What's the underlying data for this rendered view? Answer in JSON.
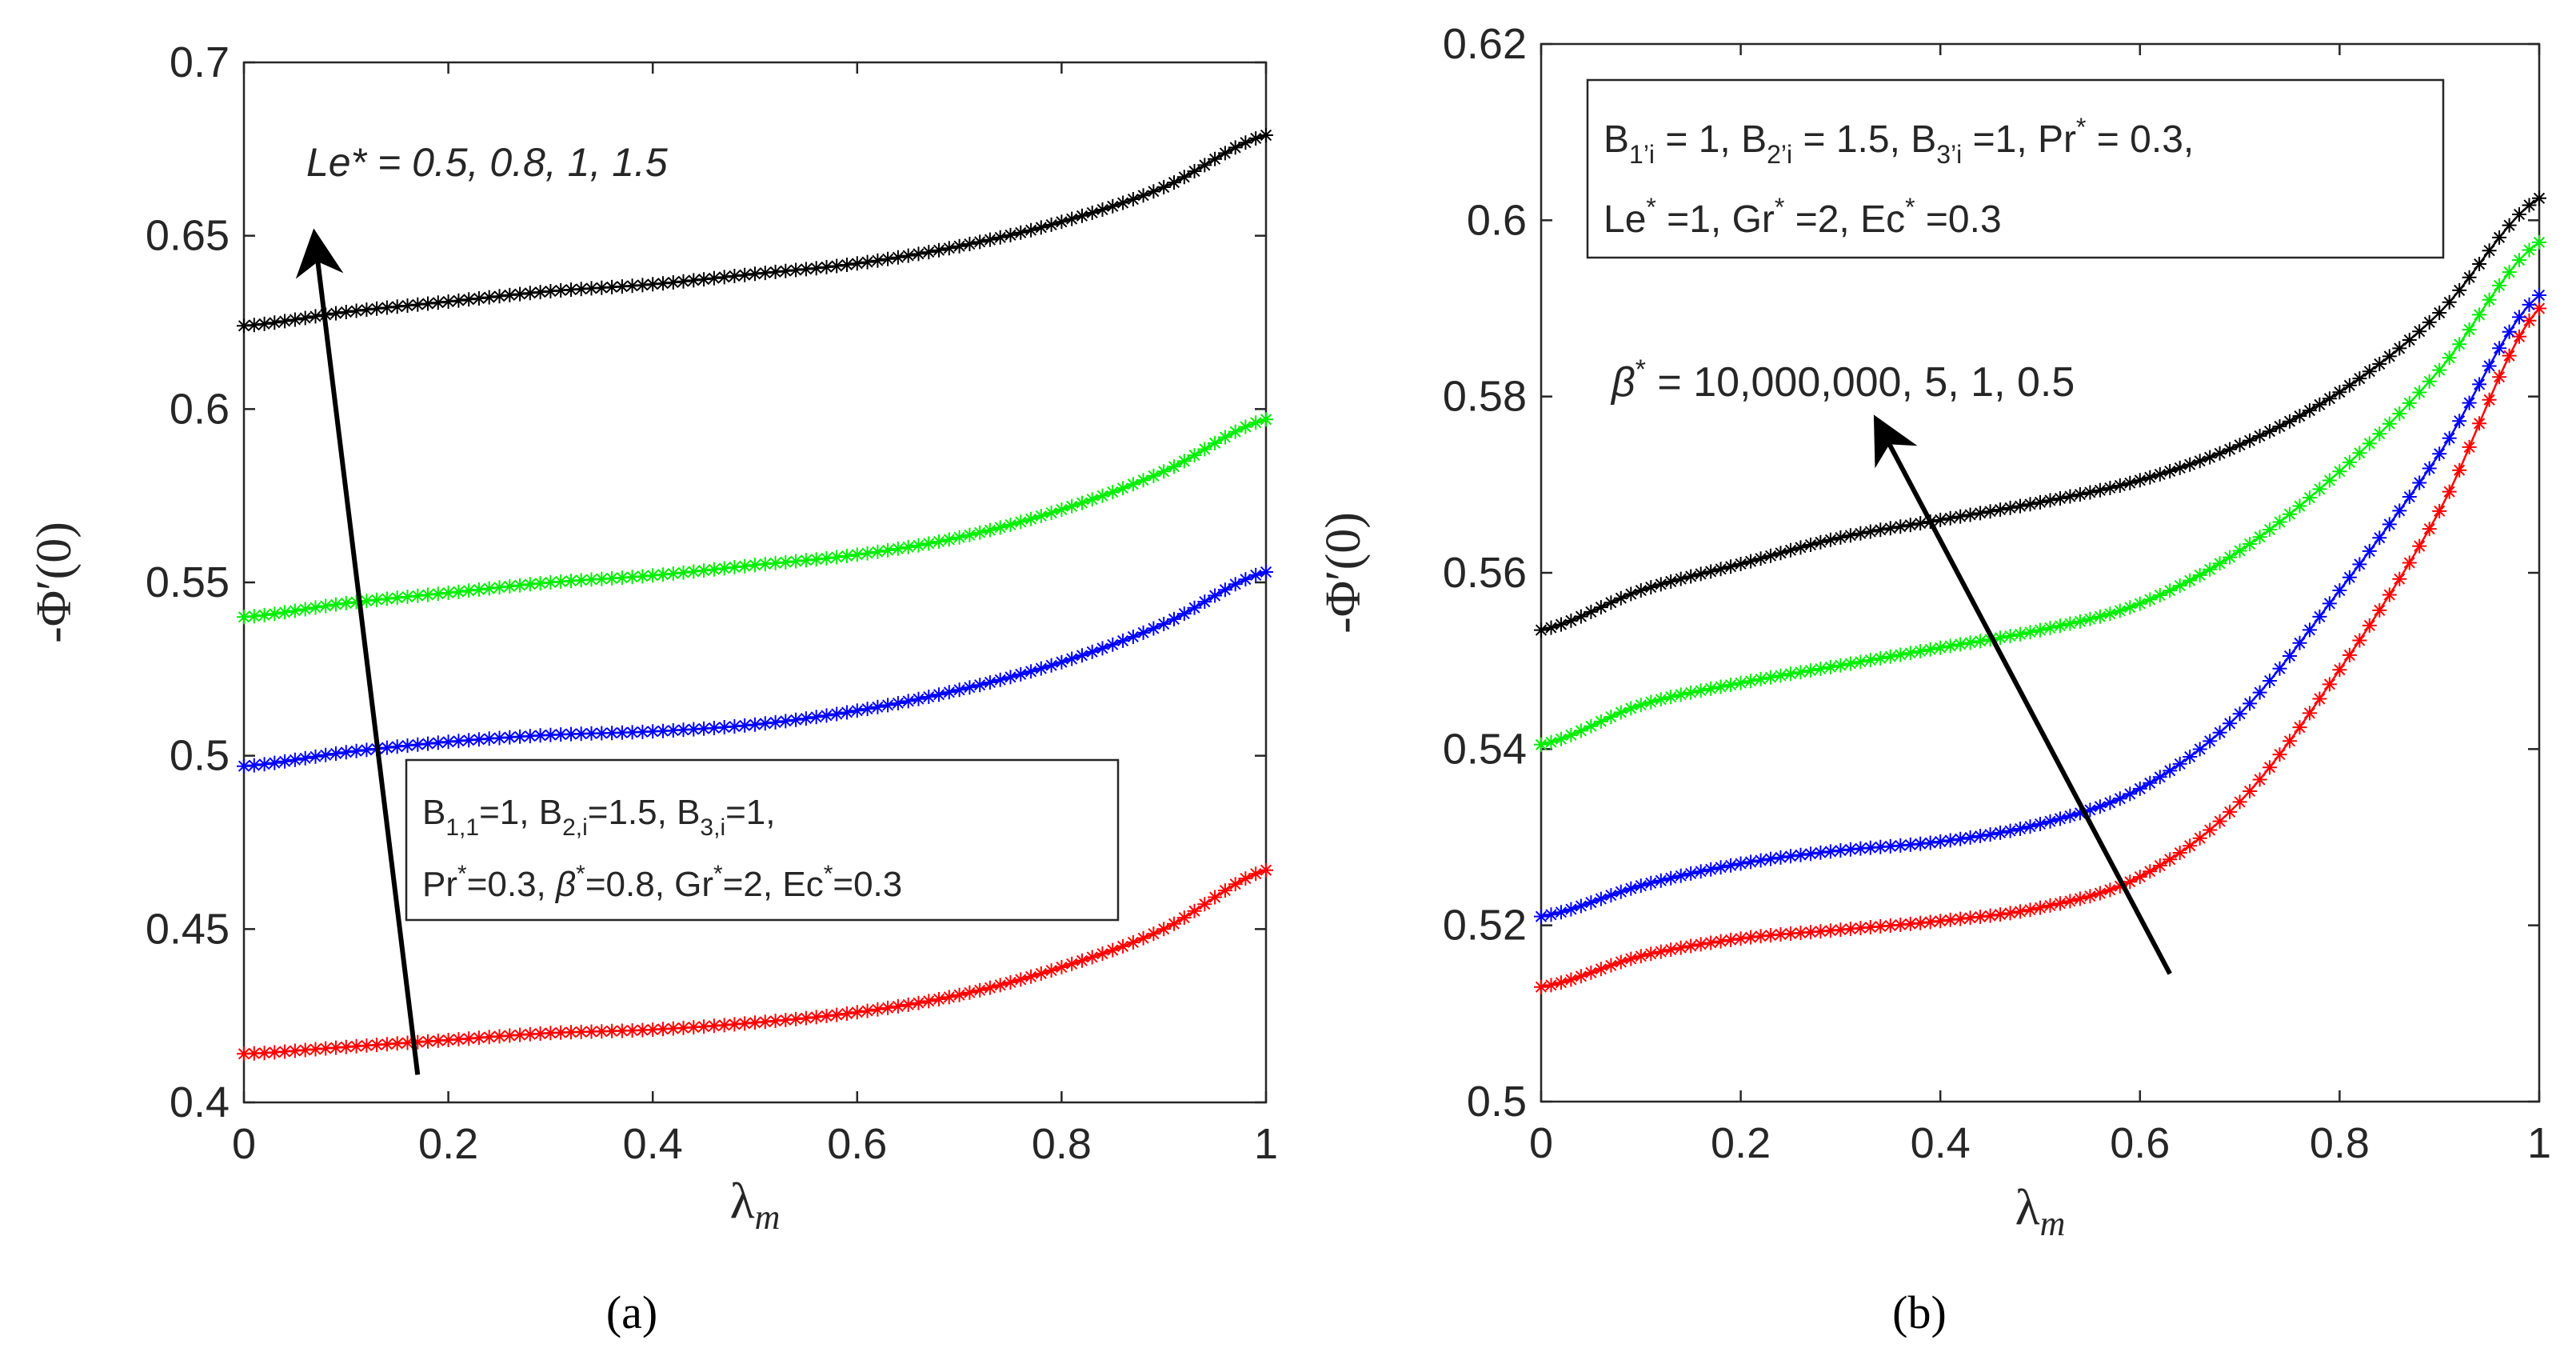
{
  "chart_data": [
    {
      "type": "line",
      "panel": "a",
      "caption": "(a)",
      "xlabel": "λ",
      "xlabel_sub": "m",
      "ylabel": "-Φ′(0)",
      "xlim": [
        0,
        1
      ],
      "ylim": [
        0.4,
        0.7
      ],
      "xticks": [
        0,
        0.2,
        0.4,
        0.6,
        0.8,
        1
      ],
      "xtick_labels": [
        "0",
        "0.2",
        "0.4",
        "0.6",
        "0.8",
        "1"
      ],
      "yticks": [
        0.4,
        0.45,
        0.5,
        0.55,
        0.6,
        0.65,
        0.7
      ],
      "ytick_labels": [
        "0.4",
        "0.45",
        "0.5",
        "0.55",
        "0.6",
        "0.65",
        "0.7"
      ],
      "marker": "*",
      "x": [
        0,
        0.1,
        0.2,
        0.3,
        0.4,
        0.5,
        0.6,
        0.7,
        0.8,
        0.9,
        1.0
      ],
      "series": [
        {
          "name": "Le* = 0.5",
          "color": "#ff0000",
          "values": [
            0.414,
            0.416,
            0.418,
            0.42,
            0.421,
            0.423,
            0.426,
            0.431,
            0.439,
            0.45,
            0.467
          ]
        },
        {
          "name": "Le* = 0.8",
          "color": "#0000ff",
          "values": [
            0.497,
            0.501,
            0.504,
            0.506,
            0.507,
            0.509,
            0.513,
            0.519,
            0.527,
            0.538,
            0.553
          ]
        },
        {
          "name": "Le* = 1",
          "color": "#00ee00",
          "values": [
            0.54,
            0.544,
            0.547,
            0.55,
            0.552,
            0.555,
            0.558,
            0.563,
            0.571,
            0.582,
            0.597
          ]
        },
        {
          "name": "Le* = 1.5",
          "color": "#000000",
          "values": [
            0.624,
            0.628,
            0.631,
            0.634,
            0.636,
            0.639,
            0.642,
            0.647,
            0.654,
            0.664,
            0.679
          ]
        }
      ],
      "annotations": {
        "arrow_label": "Le* = 0.5, 0.8, 1, 1.5",
        "arrow_label_prefix": "Le* = ",
        "arrow_label_values": "0.5, 0.8, 1, 1.5",
        "arrow_start": [
          0.17,
          0.408
        ],
        "arrow_end": [
          0.07,
          0.648
        ],
        "params_box": {
          "line1": {
            "a": "B",
            "a_sub": "1,1",
            "a_val": "=1, ",
            "b": "B",
            "b_sub": "2,i",
            "b_val": "=1.5, ",
            "c": "B",
            "c_sub": "3,i",
            "c_val": "=1,"
          },
          "line2": {
            "pr": "Pr",
            "pr_val": "=0.3, ",
            "beta": "β",
            "beta_val": "=0.8, ",
            "gr": "Gr",
            "gr_val": "=2, ",
            "ec": "Ec",
            "ec_val": "=0.3"
          },
          "star": "*"
        }
      }
    },
    {
      "type": "line",
      "panel": "b",
      "caption": "(b)",
      "xlabel": "λ",
      "xlabel_sub": "m",
      "ylabel": "-Φ′(0)",
      "xlim": [
        0,
        1
      ],
      "ylim": [
        0.5,
        0.62
      ],
      "xticks": [
        0,
        0.2,
        0.4,
        0.6,
        0.8,
        1
      ],
      "xtick_labels": [
        "0",
        "0.2",
        "0.4",
        "0.6",
        "0.8",
        "1"
      ],
      "yticks": [
        0.5,
        0.52,
        0.54,
        0.56,
        0.58,
        0.6,
        0.62
      ],
      "ytick_labels": [
        "0.5",
        "0.52",
        "0.54",
        "0.56",
        "0.58",
        "0.6",
        "0.62"
      ],
      "marker": "*",
      "x": [
        0,
        0.1,
        0.2,
        0.3,
        0.4,
        0.5,
        0.6,
        0.7,
        0.8,
        0.9,
        1.0
      ],
      "series": [
        {
          "name": "β* = 0.5",
          "color": "#ff0000",
          "values": [
            0.513,
            0.5165,
            0.5185,
            0.5195,
            0.5205,
            0.522,
            0.5255,
            0.534,
            0.549,
            0.567,
            0.59
          ]
        },
        {
          "name": "β* = 1",
          "color": "#0000ff",
          "values": [
            0.521,
            0.5245,
            0.527,
            0.5285,
            0.5295,
            0.5315,
            0.5355,
            0.544,
            0.558,
            0.5735,
            0.5915
          ]
        },
        {
          "name": "β* = 5",
          "color": "#00ee00",
          "values": [
            0.5405,
            0.545,
            0.5475,
            0.5495,
            0.5515,
            0.5535,
            0.5565,
            0.5625,
            0.5715,
            0.583,
            0.5975
          ]
        },
        {
          "name": "β* = 10,000,000",
          "color": "#000000",
          "values": [
            0.5535,
            0.558,
            0.561,
            0.564,
            0.566,
            0.568,
            0.5705,
            0.5745,
            0.5805,
            0.5895,
            0.6025
          ]
        }
      ],
      "annotations": {
        "arrow_label": "β* = 10,000,000, 5, 1, 0.5",
        "arrow_label_beta": "β",
        "arrow_label_values": " = 10,000,000, 5, 1, 0.5",
        "arrow_start": [
          0.63,
          0.5145
        ],
        "arrow_end": [
          0.34,
          0.5765
        ],
        "params_box": {
          "line1": {
            "a": "B",
            "a_sub": "1’i",
            "a_val": " = 1, ",
            "b": "B",
            "b_sub": "2’i",
            "b_val": " = 1.5, ",
            "c": "B",
            "c_sub": "3’i",
            "c_val": " =1, ",
            "pr": "Pr",
            "pr_val": " = 0.3,"
          },
          "line2": {
            "le": "Le",
            "le_val": " =1, ",
            "gr": "Gr",
            "gr_val": " =2, ",
            "ec": "Ec",
            "ec_val": " =0.3"
          },
          "star": "*"
        }
      }
    }
  ]
}
